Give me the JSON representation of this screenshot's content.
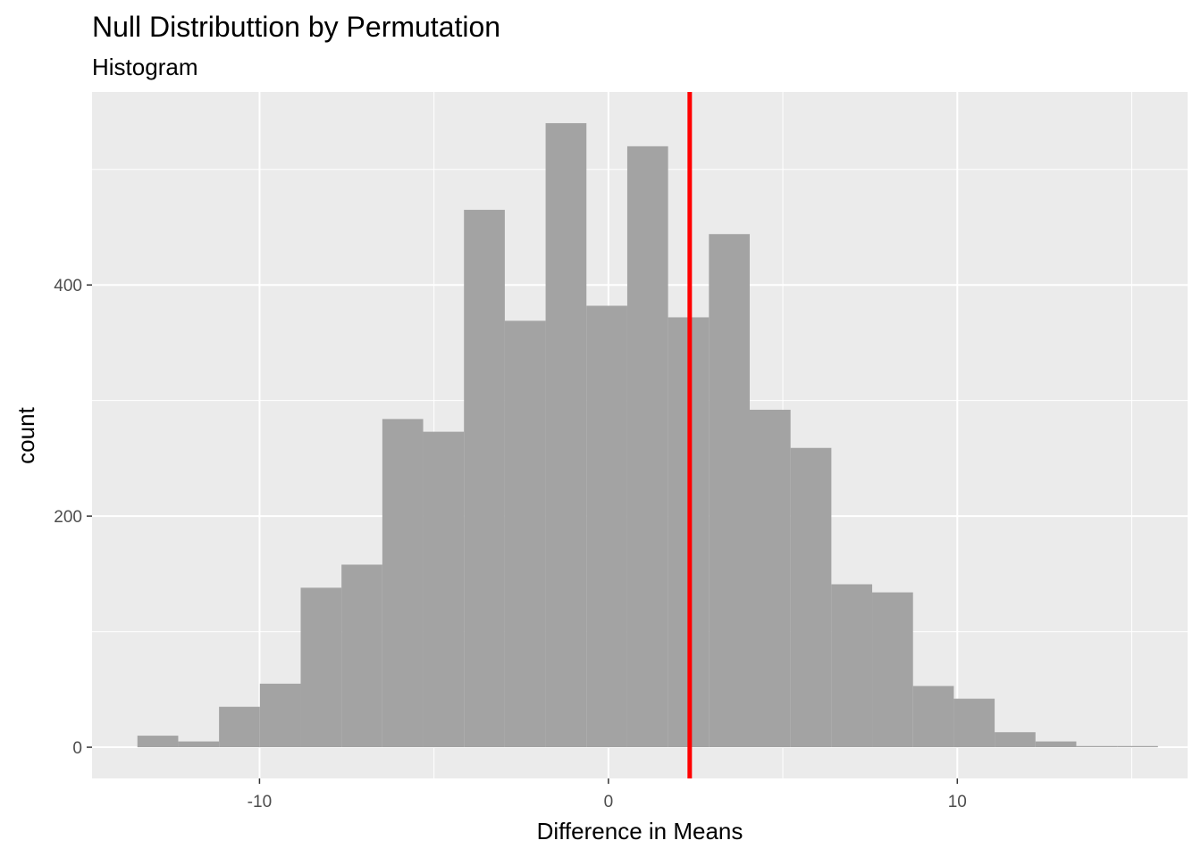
{
  "chart_data": {
    "type": "bar",
    "title": "Null Distributtion by Permutation",
    "subtitle": "Histogram",
    "xlabel": "Difference in Means",
    "ylabel": "count",
    "xlim": [
      -14.8,
      16.6
    ],
    "ylim": [
      -27,
      567
    ],
    "x_ticks": [
      -10,
      0,
      10
    ],
    "x_tick_labels": [
      "-10",
      "0",
      "10"
    ],
    "x_minor_ticks": [
      -15,
      -5,
      5,
      15
    ],
    "y_ticks": [
      0,
      200,
      400
    ],
    "y_tick_labels": [
      "0",
      "200",
      "400"
    ],
    "y_minor_ticks": [
      100,
      300,
      500
    ],
    "bins": [
      {
        "x0": -13.5,
        "x1": -12.33,
        "count": 10
      },
      {
        "x0": -12.33,
        "x1": -11.16,
        "count": 5
      },
      {
        "x0": -11.16,
        "x1": -9.99,
        "count": 35
      },
      {
        "x0": -9.99,
        "x1": -8.82,
        "count": 55
      },
      {
        "x0": -8.82,
        "x1": -7.65,
        "count": 138
      },
      {
        "x0": -7.65,
        "x1": -6.48,
        "count": 158
      },
      {
        "x0": -6.48,
        "x1": -5.31,
        "count": 284
      },
      {
        "x0": -5.31,
        "x1": -4.14,
        "count": 273
      },
      {
        "x0": -4.14,
        "x1": -2.97,
        "count": 465
      },
      {
        "x0": -2.97,
        "x1": -1.8,
        "count": 369
      },
      {
        "x0": -1.8,
        "x1": -0.63,
        "count": 540
      },
      {
        "x0": -0.63,
        "x1": 0.54,
        "count": 382
      },
      {
        "x0": 0.54,
        "x1": 1.71,
        "count": 520
      },
      {
        "x0": 1.71,
        "x1": 2.88,
        "count": 372
      },
      {
        "x0": 2.88,
        "x1": 4.05,
        "count": 444
      },
      {
        "x0": 4.05,
        "x1": 5.22,
        "count": 292
      },
      {
        "x0": 5.22,
        "x1": 6.39,
        "count": 259
      },
      {
        "x0": 6.39,
        "x1": 7.56,
        "count": 141
      },
      {
        "x0": 7.56,
        "x1": 8.73,
        "count": 134
      },
      {
        "x0": 8.73,
        "x1": 9.9,
        "count": 53
      },
      {
        "x0": 9.9,
        "x1": 11.07,
        "count": 42
      },
      {
        "x0": 11.07,
        "x1": 12.24,
        "count": 13
      },
      {
        "x0": 12.24,
        "x1": 13.41,
        "count": 5
      },
      {
        "x0": 13.41,
        "x1": 14.58,
        "count": 1
      },
      {
        "x0": 14.58,
        "x1": 15.75,
        "count": 1
      }
    ],
    "vline": {
      "x": 2.33,
      "color": "#ff0000"
    },
    "colors": {
      "panel_background": "#ebebeb",
      "grid": "#ffffff",
      "bar_fill": "#a3a3a3",
      "tick_text": "#4d4d4d",
      "tick_mark": "#333333"
    },
    "grid": true
  }
}
